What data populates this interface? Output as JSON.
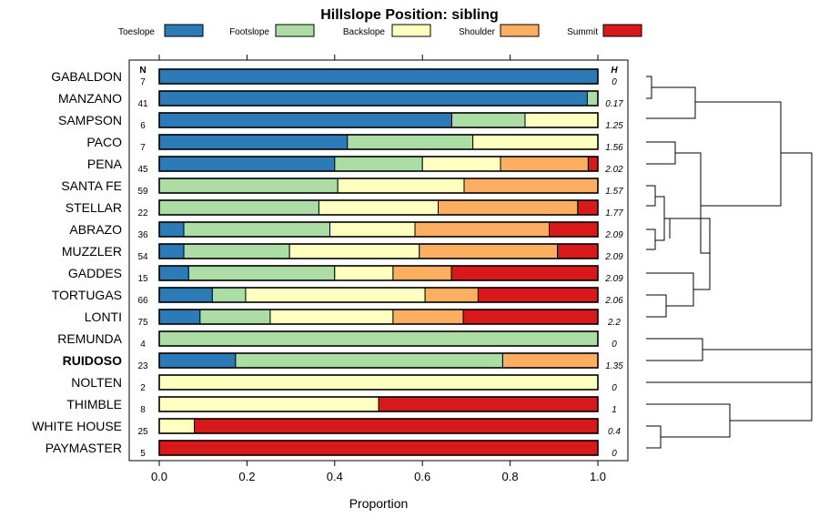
{
  "chart_data": {
    "type": "bar",
    "stacked": true,
    "orientation": "horizontal",
    "title": "Hillslope Position: sibling",
    "xlabel": "Proportion",
    "xlim": [
      0,
      1
    ],
    "xticks": [
      "0.0",
      "0.2",
      "0.4",
      "0.6",
      "0.8",
      "1.0"
    ],
    "n_header": "N",
    "h_header": "H",
    "legend": [
      {
        "name": "Toeslope",
        "color": "#2c7bb6"
      },
      {
        "name": "Footslope",
        "color": "#abdda4"
      },
      {
        "name": "Backslope",
        "color": "#ffffbf"
      },
      {
        "name": "Shoulder",
        "color": "#fdae61"
      },
      {
        "name": "Summit",
        "color": "#d7191c"
      }
    ],
    "categories": [
      "GABALDON",
      "MANZANO",
      "SAMPSON",
      "PACO",
      "PENA",
      "SANTA FE",
      "STELLAR",
      "ABRAZO",
      "MUZZLER",
      "GADDES",
      "TORTUGAS",
      "LONTI",
      "REMUNDA",
      "RUIDOSO",
      "NOLTEN",
      "THIMBLE",
      "WHITE HOUSE",
      "PAYMASTER"
    ],
    "highlight": "RUIDOSO",
    "n": [
      "7",
      "41",
      "6",
      "7",
      "45",
      "59",
      "22",
      "36",
      "54",
      "15",
      "66",
      "75",
      "4",
      "23",
      "2",
      "8",
      "25",
      "5"
    ],
    "h": [
      "0",
      "0.17",
      "1.25",
      "1.56",
      "2.02",
      "1.57",
      "1.77",
      "2.09",
      "2.09",
      "2.09",
      "2.06",
      "2.2",
      "0",
      "1.35",
      "0",
      "1",
      "0.4",
      "0"
    ],
    "series": [
      {
        "name": "Toeslope",
        "values": [
          1.0,
          0.976,
          0.667,
          0.429,
          0.4,
          0.0,
          0.0,
          0.056,
          0.056,
          0.067,
          0.121,
          0.093,
          0.0,
          0.174,
          0.0,
          0.0,
          0.0,
          0.0
        ]
      },
      {
        "name": "Footslope",
        "values": [
          0.0,
          0.024,
          0.167,
          0.286,
          0.2,
          0.407,
          0.364,
          0.333,
          0.241,
          0.333,
          0.076,
          0.16,
          1.0,
          0.609,
          0.0,
          0.0,
          0.0,
          0.0
        ]
      },
      {
        "name": "Backslope",
        "values": [
          0.0,
          0.0,
          0.166,
          0.285,
          0.178,
          0.288,
          0.272,
          0.194,
          0.296,
          0.133,
          0.409,
          0.28,
          0.0,
          0.0,
          1.0,
          0.5,
          0.08,
          0.0
        ]
      },
      {
        "name": "Shoulder",
        "values": [
          0.0,
          0.0,
          0.0,
          0.0,
          0.2,
          0.305,
          0.318,
          0.306,
          0.315,
          0.133,
          0.121,
          0.16,
          0.0,
          0.217,
          0.0,
          0.0,
          0.0,
          0.0
        ]
      },
      {
        "name": "Summit",
        "values": [
          0.0,
          0.0,
          0.0,
          0.0,
          0.022,
          0.0,
          0.046,
          0.111,
          0.092,
          0.334,
          0.273,
          0.307,
          0.0,
          0.0,
          0.0,
          0.5,
          0.92,
          1.0
        ]
      }
    ],
    "dendrogram": "hierarchical clustering of series (right side)"
  }
}
